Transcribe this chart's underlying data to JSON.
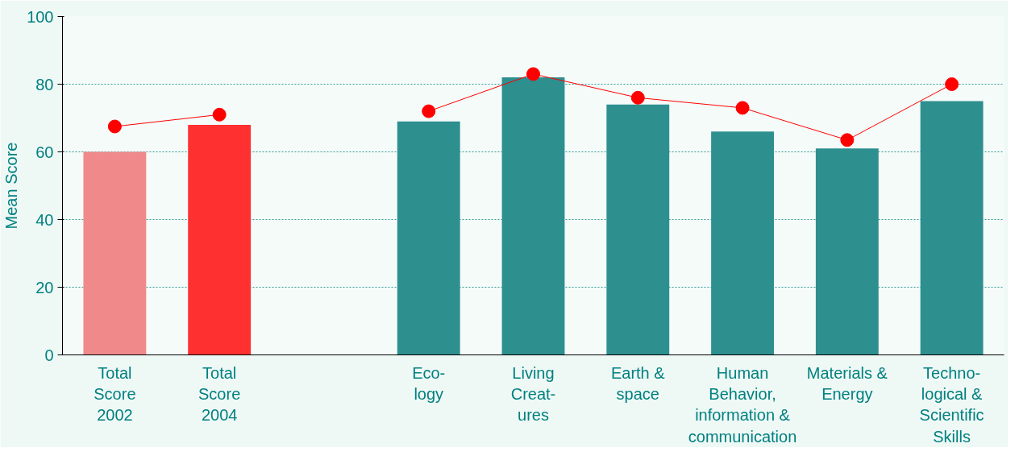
{
  "chart_data": {
    "type": "bar",
    "ylabel": "Mean Score",
    "categories": [
      "Total\nScore\n2002",
      "Total\nScore\n2004",
      null,
      "Eco-\nlogy",
      "Living\nCreat-\nures",
      "Earth &\nspace",
      "Human\nBehavior,\ninformation &\ncommunication",
      "Materials &\nEnergy",
      "Techno-\nlogical &\nScientific\nSkills"
    ],
    "series": [
      {
        "colors": [
          "#f08a8a",
          "#ff3030",
          null,
          "#2e8f8f",
          "#2e8f8f",
          "#2e8f8f",
          "#2e8f8f",
          "#2e8f8f",
          "#2e8f8f"
        ],
        "values": [
          60,
          68,
          null,
          69,
          82,
          74,
          66,
          61,
          75
        ]
      },
      {
        "type": "line",
        "color": "#ff0000",
        "marker": "circle",
        "values": [
          67.5,
          71,
          null,
          72,
          83,
          76,
          73,
          63.5,
          80
        ]
      }
    ],
    "ylim": [
      0,
      100
    ],
    "yticks": [
      0,
      20,
      40,
      60,
      80,
      100
    ],
    "grid": "y"
  }
}
